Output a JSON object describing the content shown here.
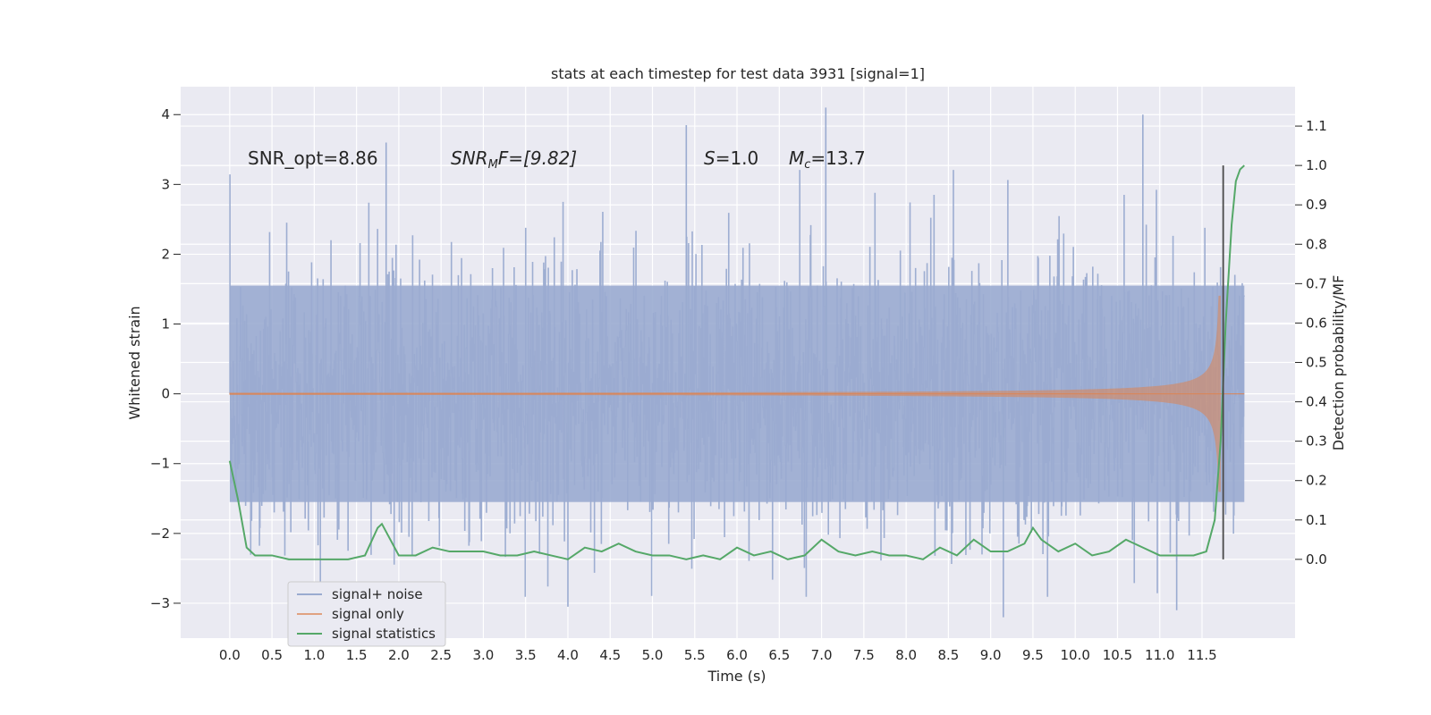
{
  "chart_data": {
    "type": "line",
    "title": "stats at each timestep for test data 3931 [signal=1]",
    "xlabel": "Time (s)",
    "ylabel_left": "Whitened strain",
    "ylabel_right": "Detection probability/MF",
    "xlim": [
      -0.58,
      12.6
    ],
    "ylim_left": [
      -3.5,
      4.4
    ],
    "ylim_right": [
      -0.2,
      1.2
    ],
    "x_ticks": [
      "0.0",
      "0.5",
      "1.0",
      "1.5",
      "2.0",
      "2.5",
      "3.0",
      "3.5",
      "4.0",
      "4.5",
      "5.0",
      "5.5",
      "6.0",
      "6.5",
      "7.0",
      "7.5",
      "8.0",
      "8.5",
      "9.0",
      "9.5",
      "10.0",
      "10.5",
      "11.0",
      "11.5"
    ],
    "y_ticks_left": [
      "4",
      "3",
      "2",
      "1",
      "0",
      "−1",
      "−2",
      "−3"
    ],
    "y_ticks_right": [
      "1.1",
      "1.0",
      "0.9",
      "0.8",
      "0.7",
      "0.6",
      "0.5",
      "0.4",
      "0.3",
      "0.2",
      "0.1",
      "0.0"
    ],
    "grid": true,
    "legend_position": "lower-left",
    "colors": {
      "background": "#eaeaf2",
      "grid": "#ffffff",
      "noise": "#9aabd0",
      "signal": "#dd8452",
      "stats": "#55a868",
      "marker": "#4a4a4a"
    },
    "annotations": {
      "snr_opt": "SNR_opt=8.86",
      "snr_mf_base": "SNR",
      "snr_mf_sub": "M",
      "snr_mf_rest": "F=[9.82]",
      "s_var": "S",
      "s_rest": "=1.0",
      "mc_var": "M",
      "mc_sub": "c",
      "mc_rest": "=13.7"
    },
    "detection_time": 11.75,
    "signal_end": 11.72,
    "series": [
      {
        "name": "signal+ noise",
        "axis": "left",
        "description_range": [
          -3.3,
          4.1
        ],
        "peaks": [
          {
            "x": 1.85,
            "y": 3.6
          },
          {
            "x": 5.4,
            "y": 3.85
          },
          {
            "x": 7.05,
            "y": 4.1
          },
          {
            "x": 10.8,
            "y": 4.0
          },
          {
            "x": 9.15,
            "y": -3.2
          },
          {
            "x": 11.2,
            "y": -3.1
          },
          {
            "x": 4.0,
            "y": -3.05
          }
        ],
        "x_range": [
          0.0,
          12.0
        ]
      },
      {
        "name": "signal only",
        "axis": "left",
        "x_range": [
          0.0,
          12.0
        ],
        "peak_amplitude": 1.4
      },
      {
        "name": "signal statistics",
        "axis": "right",
        "x": [
          0.0,
          0.1,
          0.2,
          0.3,
          0.5,
          0.7,
          1.0,
          1.2,
          1.4,
          1.6,
          1.75,
          1.8,
          1.9,
          2.0,
          2.2,
          2.4,
          2.6,
          2.8,
          3.0,
          3.2,
          3.4,
          3.6,
          3.8,
          4.0,
          4.2,
          4.4,
          4.6,
          4.8,
          5.0,
          5.2,
          5.4,
          5.6,
          5.8,
          6.0,
          6.2,
          6.4,
          6.6,
          6.8,
          7.0,
          7.2,
          7.4,
          7.6,
          7.8,
          8.0,
          8.2,
          8.4,
          8.6,
          8.8,
          9.0,
          9.2,
          9.4,
          9.5,
          9.6,
          9.8,
          10.0,
          10.2,
          10.4,
          10.6,
          10.8,
          11.0,
          11.2,
          11.4,
          11.55,
          11.65,
          11.72,
          11.78,
          11.85,
          11.9,
          11.95,
          12.0
        ],
        "values": [
          0.25,
          0.15,
          0.03,
          0.01,
          0.01,
          0.0,
          0.0,
          0.0,
          0.0,
          0.01,
          0.08,
          0.09,
          0.05,
          0.01,
          0.01,
          0.03,
          0.02,
          0.02,
          0.02,
          0.01,
          0.01,
          0.02,
          0.01,
          0.0,
          0.03,
          0.02,
          0.04,
          0.02,
          0.01,
          0.01,
          0.0,
          0.01,
          0.0,
          0.03,
          0.01,
          0.02,
          0.0,
          0.01,
          0.05,
          0.02,
          0.01,
          0.02,
          0.01,
          0.01,
          0.0,
          0.03,
          0.01,
          0.05,
          0.02,
          0.02,
          0.04,
          0.08,
          0.05,
          0.02,
          0.04,
          0.01,
          0.02,
          0.05,
          0.03,
          0.01,
          0.01,
          0.01,
          0.02,
          0.1,
          0.3,
          0.6,
          0.85,
          0.96,
          0.99,
          1.0
        ]
      }
    ]
  }
}
